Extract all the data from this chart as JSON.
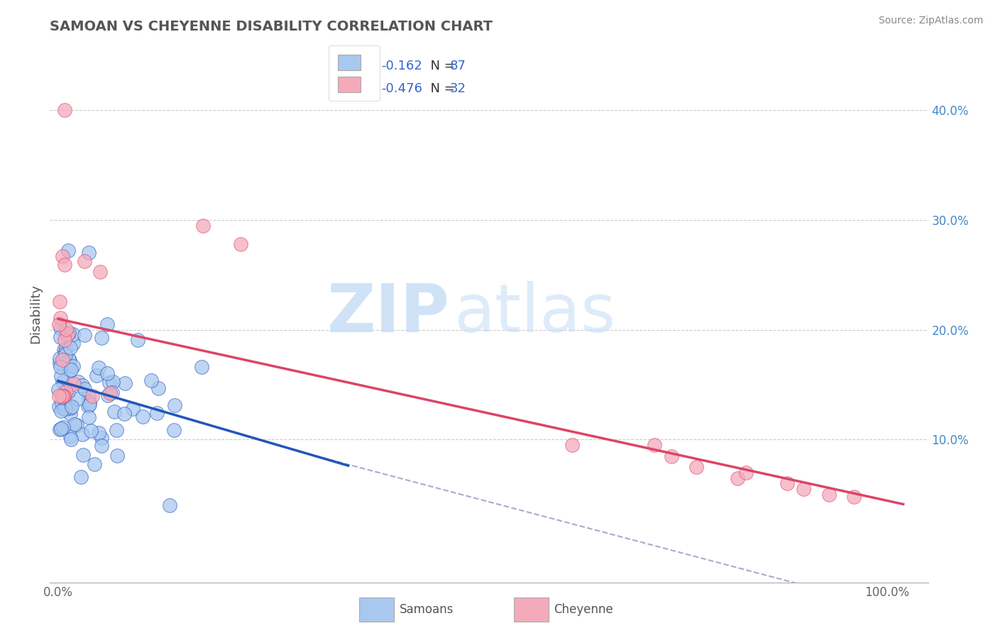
{
  "title": "SAMOAN VS CHEYENNE DISABILITY CORRELATION CHART",
  "source": "Source: ZipAtlas.com",
  "ylabel": "Disability",
  "watermark_zip": "ZIP",
  "watermark_atlas": "atlas",
  "legend_samoans_R": -0.162,
  "legend_samoans_N": 87,
  "legend_cheyenne_R": -0.476,
  "legend_cheyenne_N": 32,
  "samoan_color": "#a8c8f0",
  "cheyenne_color": "#f4aabb",
  "samoan_line_color": "#2255bb",
  "cheyenne_line_color": "#dd4466",
  "dashed_line_color": "#aaaacc",
  "background_color": "#ffffff",
  "ylim": [
    -0.03,
    0.46
  ],
  "xlim": [
    -0.01,
    1.05
  ],
  "yticks": [
    0.1,
    0.2,
    0.3,
    0.4
  ],
  "ytick_labels": [
    "10.0%",
    "20.0%",
    "30.0%",
    "40.0%"
  ],
  "title_color": "#555555",
  "ylabel_color": "#555555",
  "source_color": "#888888",
  "legend_R_color": "#3366cc",
  "legend_N_color": "#3366cc",
  "legend_label_color": "#333333",
  "right_tick_color": "#4488cc",
  "bottom_legend_color": "#555555"
}
